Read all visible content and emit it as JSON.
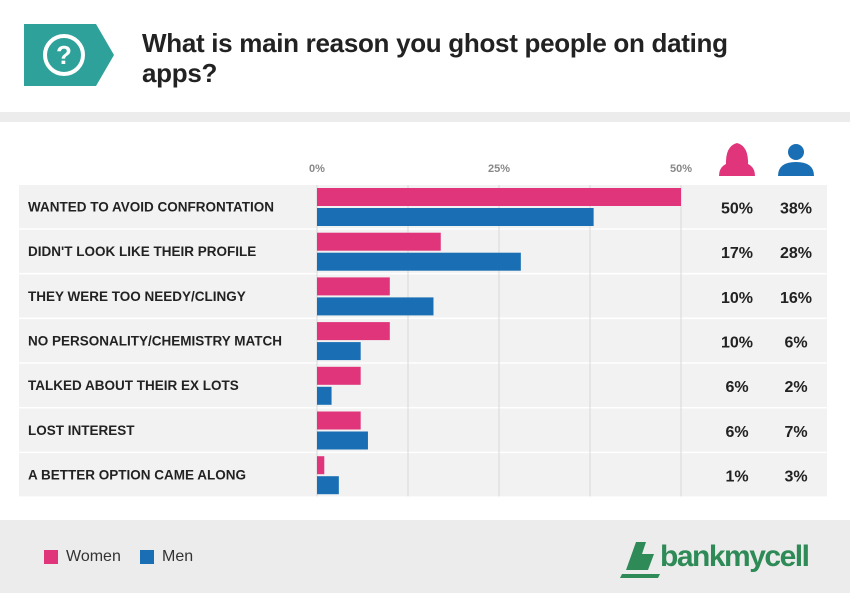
{
  "header": {
    "title": "What is main reason you ghost people on dating apps?",
    "icon": "question-icon"
  },
  "colors": {
    "women": "#e0357a",
    "men": "#1a6fb4",
    "badge": "#2ea29a",
    "row_alt": "#f2f2f2",
    "logo": "#2e8b57"
  },
  "chart_data": {
    "type": "bar",
    "orientation": "horizontal",
    "categories": [
      "WANTED TO AVOID CONFRONTATION",
      "DIDN'T LOOK LIKE THEIR PROFILE",
      "THEY WERE TOO NEEDY/CLINGY",
      "NO PERSONALITY/CHEMISTRY MATCH",
      "TALKED ABOUT THEIR EX LOTS",
      "LOST INTEREST",
      "A BETTER OPTION CAME ALONG"
    ],
    "series": [
      {
        "name": "Women",
        "values": [
          50,
          17,
          10,
          10,
          6,
          6,
          1
        ],
        "labels": [
          "50%",
          "17%",
          "10%",
          "10%",
          "6%",
          "6%",
          "1%"
        ]
      },
      {
        "name": "Men",
        "values": [
          38,
          28,
          16,
          6,
          2,
          7,
          3
        ],
        "labels": [
          "38%",
          "28%",
          "16%",
          "6%",
          "2%",
          "7%",
          "3%"
        ]
      }
    ],
    "xlim": [
      0,
      50
    ],
    "xticks": [
      "0%",
      "25%",
      "50%"
    ],
    "grid": true,
    "legend": "bottom-left"
  },
  "legend": {
    "women_label": "Women",
    "men_label": "Men"
  },
  "logo": {
    "text": "bankmycell"
  }
}
